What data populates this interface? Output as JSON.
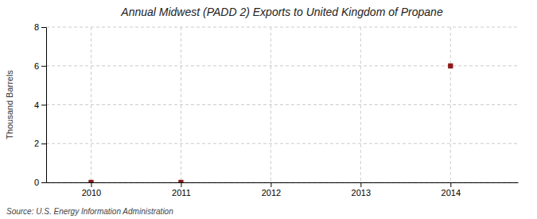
{
  "chart_data": {
    "type": "scatter",
    "title": "Annual Midwest (PADD 2) Exports to United Kingdom of Propane",
    "y_label": "Thousand Barrels",
    "annotations": [
      "Source: U.S. Energy Information Administration"
    ],
    "x": [
      2010,
      2011,
      2014
    ],
    "values": [
      0,
      0,
      6
    ],
    "color": "#8b1a1a",
    "marker": "square",
    "xlim": [
      2009.5,
      2014.75
    ],
    "ylim": [
      0,
      8
    ],
    "xticks": [
      2010,
      2011,
      2012,
      2013,
      2014
    ],
    "yticks": [
      0,
      2,
      4,
      6,
      8
    ],
    "grid": true
  }
}
